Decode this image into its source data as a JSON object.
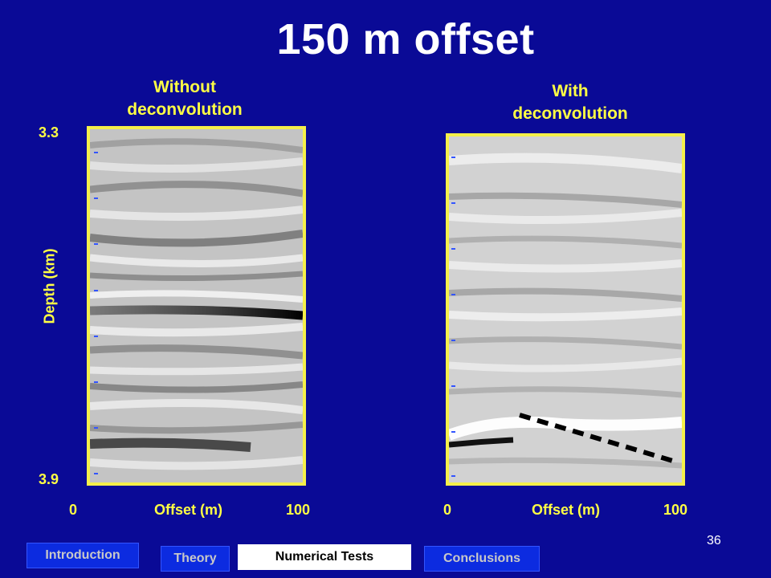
{
  "slide": {
    "title": "150 m offset",
    "slide_number": "36"
  },
  "left_panel": {
    "title_line1": "Without",
    "title_line2": "deconvolution",
    "depth_top": "3.3",
    "depth_bottom": "3.9",
    "depth_axis_label": "Depth (km)",
    "offset_min": "0",
    "offset_max": "100",
    "offset_axis_label": "Offset (m)"
  },
  "right_panel": {
    "title_line1": "With",
    "title_line2": "deconvolution",
    "offset_min": "0",
    "offset_max": "100",
    "offset_axis_label": "Offset (m)"
  },
  "nav": {
    "items": [
      {
        "label": "Introduction",
        "active": false
      },
      {
        "label": "Theory",
        "active": false
      },
      {
        "label": "Numerical Tests",
        "active": true
      },
      {
        "label": "Conclusions",
        "active": false
      }
    ]
  },
  "colors": {
    "background": "#0a0a96",
    "accent_yellow": "#ffff44",
    "panel_border": "#f5f04a",
    "nav_blue": "#0c2be0"
  }
}
